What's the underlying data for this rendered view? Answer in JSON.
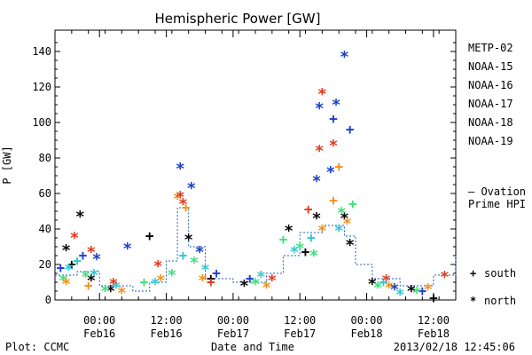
{
  "footer": {
    "plot_label": "Plot: CCMC",
    "timestamp": "2013/02/18 12:45:06"
  },
  "legend": {
    "south_label": "south",
    "north_label": "north"
  },
  "chart_data": {
    "type": "scatter",
    "title": "Hemispheric Power [GW]",
    "xlabel": "Date and Time",
    "ylabel": "P [GW]",
    "xlim": [
      "2013-02-15 16:00",
      "2013-02-18 16:00"
    ],
    "ylim": [
      0,
      150
    ],
    "y_ticks": [
      0,
      20,
      40,
      60,
      80,
      100,
      120,
      140
    ],
    "x_ticks": [
      {
        "x": "2013-02-16 00:00",
        "time": "00:00",
        "date": "Feb16"
      },
      {
        "x": "2013-02-16 12:00",
        "time": "12:00",
        "date": "Feb16"
      },
      {
        "x": "2013-02-17 00:00",
        "time": "00:00",
        "date": "Feb17"
      },
      {
        "x": "2013-02-17 12:00",
        "time": "12:00",
        "date": "Feb17"
      },
      {
        "x": "2013-02-18 00:00",
        "time": "00:00",
        "date": "Feb18"
      },
      {
        "x": "2013-02-18 12:00",
        "time": "12:00",
        "date": "Feb18"
      }
    ],
    "grid": false,
    "legend_position": "right",
    "series": [
      {
        "name": "METP-02",
        "color": "#000000",
        "points": [
          {
            "x": "2013-02-15 19:00",
            "y": 20,
            "m": "south"
          },
          {
            "x": "2013-02-15 20:30",
            "y": 48,
            "m": "north"
          },
          {
            "x": "2013-02-15 18:00",
            "y": 29,
            "m": "north"
          },
          {
            "x": "2013-02-15 22:30",
            "y": 12,
            "m": "north"
          },
          {
            "x": "2013-02-16 02:00",
            "y": 6,
            "m": "north"
          },
          {
            "x": "2013-02-16 09:00",
            "y": 36,
            "m": "south"
          },
          {
            "x": "2013-02-16 16:00",
            "y": 35,
            "m": "north"
          },
          {
            "x": "2013-02-16 20:00",
            "y": 12,
            "m": "south"
          },
          {
            "x": "2013-02-17 02:00",
            "y": 9,
            "m": "north"
          },
          {
            "x": "2013-02-17 10:00",
            "y": 40,
            "m": "north"
          },
          {
            "x": "2013-02-17 13:00",
            "y": 27,
            "m": "south"
          },
          {
            "x": "2013-02-17 15:00",
            "y": 47,
            "m": "north"
          },
          {
            "x": "2013-02-17 20:00",
            "y": 47,
            "m": "north"
          },
          {
            "x": "2013-02-17 21:00",
            "y": 32,
            "m": "north"
          },
          {
            "x": "2013-02-18 01:00",
            "y": 10,
            "m": "north"
          },
          {
            "x": "2013-02-18 08:00",
            "y": 6,
            "m": "north"
          },
          {
            "x": "2013-02-18 12:00",
            "y": 1,
            "m": "south"
          }
        ]
      },
      {
        "name": "NOAA-15",
        "color": "#1a3fc8",
        "points": [
          {
            "x": "2013-02-15 17:00",
            "y": 18,
            "m": "south"
          },
          {
            "x": "2013-02-15 21:00",
            "y": 25,
            "m": "south"
          },
          {
            "x": "2013-02-15 23:30",
            "y": 24,
            "m": "north"
          },
          {
            "x": "2013-02-16 05:00",
            "y": 30,
            "m": "north"
          },
          {
            "x": "2013-02-16 14:30",
            "y": 75,
            "m": "north"
          },
          {
            "x": "2013-02-16 16:30",
            "y": 64,
            "m": "north"
          },
          {
            "x": "2013-02-16 18:00",
            "y": 28,
            "m": "north"
          },
          {
            "x": "2013-02-16 21:00",
            "y": 15,
            "m": "south"
          },
          {
            "x": "2013-02-17 03:00",
            "y": 12,
            "m": "south"
          },
          {
            "x": "2013-02-17 15:00",
            "y": 68,
            "m": "north"
          },
          {
            "x": "2013-02-17 15:30",
            "y": 109,
            "m": "north"
          },
          {
            "x": "2013-02-17 17:30",
            "y": 73,
            "m": "north"
          },
          {
            "x": "2013-02-17 18:00",
            "y": 102,
            "m": "south"
          },
          {
            "x": "2013-02-17 18:30",
            "y": 111,
            "m": "north"
          },
          {
            "x": "2013-02-17 20:00",
            "y": 138,
            "m": "north"
          },
          {
            "x": "2013-02-17 21:00",
            "y": 96,
            "m": "south"
          },
          {
            "x": "2013-02-18 05:00",
            "y": 7,
            "m": "north"
          },
          {
            "x": "2013-02-18 10:00",
            "y": 5,
            "m": "south"
          }
        ]
      },
      {
        "name": "NOAA-16",
        "color": "#2ec8d6",
        "points": [
          {
            "x": "2013-02-15 18:30",
            "y": 18,
            "m": "north"
          },
          {
            "x": "2013-02-15 20:00",
            "y": 22,
            "m": "south"
          },
          {
            "x": "2013-02-15 23:00",
            "y": 15,
            "m": "north"
          },
          {
            "x": "2013-02-16 03:00",
            "y": 8,
            "m": "north"
          },
          {
            "x": "2013-02-16 10:00",
            "y": 10,
            "m": "north"
          },
          {
            "x": "2013-02-16 15:00",
            "y": 25,
            "m": "south"
          },
          {
            "x": "2013-02-16 19:00",
            "y": 18,
            "m": "north"
          },
          {
            "x": "2013-02-17 05:00",
            "y": 14,
            "m": "north"
          },
          {
            "x": "2013-02-17 11:00",
            "y": 28,
            "m": "north"
          },
          {
            "x": "2013-02-17 14:00",
            "y": 35,
            "m": "south"
          },
          {
            "x": "2013-02-17 19:00",
            "y": 40,
            "m": "north"
          },
          {
            "x": "2013-02-18 03:00",
            "y": 10,
            "m": "south"
          },
          {
            "x": "2013-02-18 06:00",
            "y": 4,
            "m": "north"
          }
        ]
      },
      {
        "name": "NOAA-17",
        "color": "#3fe07a",
        "points": [
          {
            "x": "2013-02-15 17:30",
            "y": 12,
            "m": "north"
          },
          {
            "x": "2013-02-15 21:30",
            "y": 14,
            "m": "north"
          },
          {
            "x": "2013-02-16 01:00",
            "y": 6,
            "m": "north"
          },
          {
            "x": "2013-02-16 08:00",
            "y": 10,
            "m": "south"
          },
          {
            "x": "2013-02-16 13:00",
            "y": 15,
            "m": "north"
          },
          {
            "x": "2013-02-16 17:00",
            "y": 22,
            "m": "north"
          },
          {
            "x": "2013-02-17 04:00",
            "y": 10,
            "m": "north"
          },
          {
            "x": "2013-02-17 09:00",
            "y": 34,
            "m": "south"
          },
          {
            "x": "2013-02-17 12:00",
            "y": 30,
            "m": "north"
          },
          {
            "x": "2013-02-17 14:30",
            "y": 26,
            "m": "north"
          },
          {
            "x": "2013-02-17 19:30",
            "y": 50,
            "m": "north"
          },
          {
            "x": "2013-02-17 21:30",
            "y": 54,
            "m": "south"
          },
          {
            "x": "2013-02-18 02:00",
            "y": 8,
            "m": "north"
          },
          {
            "x": "2013-02-18 09:00",
            "y": 5,
            "m": "north"
          }
        ]
      },
      {
        "name": "NOAA-18",
        "color": "#f0921e",
        "points": [
          {
            "x": "2013-02-15 18:00",
            "y": 10,
            "m": "north"
          },
          {
            "x": "2013-02-15 22:00",
            "y": 8,
            "m": "south"
          },
          {
            "x": "2013-02-16 04:00",
            "y": 5,
            "m": "north"
          },
          {
            "x": "2013-02-16 11:00",
            "y": 12,
            "m": "north"
          },
          {
            "x": "2013-02-16 14:00",
            "y": 58,
            "m": "north"
          },
          {
            "x": "2013-02-16 15:30",
            "y": 52,
            "m": "south"
          },
          {
            "x": "2013-02-16 18:30",
            "y": 12,
            "m": "north"
          },
          {
            "x": "2013-02-17 06:00",
            "y": 8,
            "m": "north"
          },
          {
            "x": "2013-02-17 16:00",
            "y": 40,
            "m": "north"
          },
          {
            "x": "2013-02-17 18:00",
            "y": 56,
            "m": "south"
          },
          {
            "x": "2013-02-17 19:00",
            "y": 75,
            "m": "south"
          },
          {
            "x": "2013-02-17 20:30",
            "y": 44,
            "m": "north"
          },
          {
            "x": "2013-02-18 04:00",
            "y": 8,
            "m": "north"
          },
          {
            "x": "2013-02-18 11:00",
            "y": 7,
            "m": "north"
          }
        ]
      },
      {
        "name": "NOAA-19",
        "color": "#e0391e",
        "points": [
          {
            "x": "2013-02-15 19:30",
            "y": 36,
            "m": "north"
          },
          {
            "x": "2013-02-15 22:30",
            "y": 28,
            "m": "north"
          },
          {
            "x": "2013-02-16 02:30",
            "y": 10,
            "m": "north"
          },
          {
            "x": "2013-02-16 10:30",
            "y": 20,
            "m": "north"
          },
          {
            "x": "2013-02-16 14:30",
            "y": 59,
            "m": "north"
          },
          {
            "x": "2013-02-16 15:00",
            "y": 55,
            "m": "north"
          },
          {
            "x": "2013-02-16 20:00",
            "y": 10,
            "m": "south"
          },
          {
            "x": "2013-02-17 07:00",
            "y": 12,
            "m": "north"
          },
          {
            "x": "2013-02-17 13:30",
            "y": 51,
            "m": "south"
          },
          {
            "x": "2013-02-17 15:30",
            "y": 85,
            "m": "north"
          },
          {
            "x": "2013-02-17 16:00",
            "y": 117,
            "m": "north"
          },
          {
            "x": "2013-02-17 18:00",
            "y": 88,
            "m": "north"
          },
          {
            "x": "2013-02-18 03:30",
            "y": 12,
            "m": "north"
          },
          {
            "x": "2013-02-18 14:00",
            "y": 14,
            "m": "north"
          }
        ]
      },
      {
        "name": "Ovation Prime HPI",
        "color": "#1a5fc8",
        "type": "step",
        "points": [
          {
            "x": "2013-02-15 16:00",
            "y": 14
          },
          {
            "x": "2013-02-15 20:00",
            "y": 16
          },
          {
            "x": "2013-02-16 00:00",
            "y": 8
          },
          {
            "x": "2013-02-16 06:00",
            "y": 5
          },
          {
            "x": "2013-02-16 09:00",
            "y": 10
          },
          {
            "x": "2013-02-16 12:00",
            "y": 22
          },
          {
            "x": "2013-02-16 14:00",
            "y": 52
          },
          {
            "x": "2013-02-16 16:00",
            "y": 30
          },
          {
            "x": "2013-02-16 19:00",
            "y": 12
          },
          {
            "x": "2013-02-17 00:00",
            "y": 10
          },
          {
            "x": "2013-02-17 06:00",
            "y": 15
          },
          {
            "x": "2013-02-17 09:00",
            "y": 25
          },
          {
            "x": "2013-02-17 12:00",
            "y": 38
          },
          {
            "x": "2013-02-17 16:00",
            "y": 42
          },
          {
            "x": "2013-02-17 20:00",
            "y": 36
          },
          {
            "x": "2013-02-17 22:00",
            "y": 20
          },
          {
            "x": "2013-02-18 01:00",
            "y": 12
          },
          {
            "x": "2013-02-18 06:00",
            "y": 8
          },
          {
            "x": "2013-02-18 12:00",
            "y": 14
          },
          {
            "x": "2013-02-18 16:00",
            "y": 25
          }
        ]
      }
    ]
  }
}
